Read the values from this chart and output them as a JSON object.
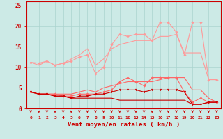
{
  "xlabel": "Vent moyen/en rafales ( km/h )",
  "xlim": [
    -0.5,
    23.5
  ],
  "ylim": [
    0,
    26
  ],
  "background_color": "#cceae6",
  "grid_color": "#aad4ce",
  "series": [
    {
      "label": "line1_light_marker",
      "color": "#ff9999",
      "linewidth": 0.8,
      "marker": "D",
      "markersize": 1.8,
      "x": [
        0,
        1,
        2,
        3,
        4,
        5,
        6,
        7,
        8,
        9,
        10,
        11,
        12,
        13,
        14,
        15,
        16,
        17,
        18,
        19,
        20,
        21,
        22,
        23
      ],
      "y": [
        11.2,
        11.0,
        11.5,
        10.5,
        11.0,
        11.5,
        12.5,
        13.0,
        8.5,
        10.0,
        15.5,
        18.0,
        17.5,
        18.0,
        18.0,
        16.5,
        21.0,
        21.0,
        18.5,
        13.0,
        21.0,
        21.0,
        7.0,
        7.0
      ]
    },
    {
      "label": "line2_light",
      "color": "#ff9999",
      "linewidth": 0.8,
      "marker": null,
      "markersize": 0,
      "x": [
        0,
        1,
        2,
        3,
        4,
        5,
        6,
        7,
        8,
        9,
        10,
        11,
        12,
        13,
        14,
        15,
        16,
        17,
        18,
        19,
        20,
        21,
        22,
        23
      ],
      "y": [
        11.2,
        10.5,
        11.5,
        10.5,
        11.0,
        12.0,
        13.0,
        14.5,
        10.5,
        12.0,
        14.5,
        15.5,
        16.0,
        16.5,
        16.5,
        16.5,
        17.5,
        17.5,
        18.0,
        13.5,
        13.5,
        13.5,
        7.0,
        7.0
      ]
    },
    {
      "label": "line3_medium_marker",
      "color": "#ff6666",
      "linewidth": 0.8,
      "marker": "D",
      "markersize": 1.8,
      "x": [
        0,
        1,
        2,
        3,
        4,
        5,
        6,
        7,
        8,
        9,
        10,
        11,
        12,
        13,
        14,
        15,
        16,
        17,
        18,
        19,
        20,
        21,
        22,
        23
      ],
      "y": [
        4.0,
        3.5,
        3.5,
        3.5,
        3.0,
        3.0,
        3.5,
        3.5,
        3.5,
        4.0,
        4.5,
        6.5,
        7.5,
        6.5,
        5.5,
        7.5,
        7.5,
        7.5,
        7.5,
        4.0,
        1.5,
        2.5,
        1.5,
        1.5
      ]
    },
    {
      "label": "line4_medium",
      "color": "#ff6666",
      "linewidth": 0.8,
      "marker": null,
      "markersize": 0,
      "x": [
        0,
        1,
        2,
        3,
        4,
        5,
        6,
        7,
        8,
        9,
        10,
        11,
        12,
        13,
        14,
        15,
        16,
        17,
        18,
        19,
        20,
        21,
        22,
        23
      ],
      "y": [
        4.0,
        3.5,
        3.5,
        3.5,
        3.5,
        3.5,
        4.0,
        4.5,
        4.0,
        5.0,
        5.5,
        6.0,
        6.5,
        6.5,
        6.5,
        6.5,
        7.0,
        7.5,
        7.5,
        7.5,
        4.5,
        4.5,
        2.5,
        1.5
      ]
    },
    {
      "label": "line5_dark_marker",
      "color": "#cc0000",
      "linewidth": 0.8,
      "marker": "v",
      "markersize": 2.0,
      "x": [
        0,
        1,
        2,
        3,
        4,
        5,
        6,
        7,
        8,
        9,
        10,
        11,
        12,
        13,
        14,
        15,
        16,
        17,
        18,
        19,
        20,
        21,
        22,
        23
      ],
      "y": [
        4.0,
        3.5,
        3.5,
        3.0,
        3.0,
        2.5,
        3.0,
        3.0,
        3.5,
        3.5,
        4.0,
        4.5,
        4.5,
        4.5,
        4.0,
        4.5,
        4.5,
        4.5,
        4.5,
        4.0,
        1.0,
        1.0,
        1.5,
        1.5
      ]
    },
    {
      "label": "line6_dark",
      "color": "#cc0000",
      "linewidth": 0.8,
      "marker": null,
      "markersize": 0,
      "x": [
        0,
        1,
        2,
        3,
        4,
        5,
        6,
        7,
        8,
        9,
        10,
        11,
        12,
        13,
        14,
        15,
        16,
        17,
        18,
        19,
        20,
        21,
        22,
        23
      ],
      "y": [
        4.0,
        3.5,
        3.5,
        3.0,
        3.0,
        2.5,
        2.5,
        2.5,
        2.5,
        2.5,
        2.5,
        2.0,
        2.0,
        2.0,
        2.0,
        2.0,
        2.0,
        2.0,
        2.0,
        2.0,
        1.0,
        1.0,
        1.5,
        1.5
      ]
    }
  ],
  "arrow_color": "#cc0000",
  "xtick_fontsize": 4.5,
  "ytick_fontsize": 5.5,
  "xlabel_fontsize": 6.5,
  "xlabel_color": "#cc0000",
  "tick_color": "#cc0000",
  "spine_color": "#cc0000",
  "yticks": [
    0,
    5,
    10,
    15,
    20,
    25
  ],
  "xticks": [
    0,
    1,
    2,
    3,
    4,
    5,
    6,
    7,
    8,
    9,
    10,
    11,
    12,
    13,
    14,
    15,
    16,
    17,
    18,
    19,
    20,
    21,
    22,
    23
  ]
}
